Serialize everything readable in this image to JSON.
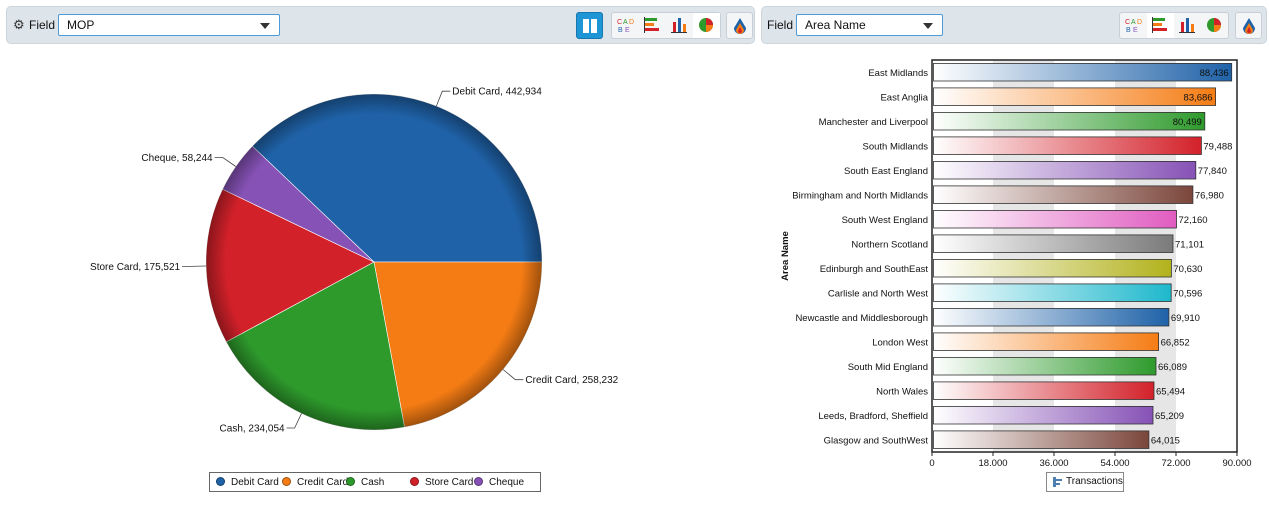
{
  "left_panel": {
    "field_label": "Field",
    "field_value": "MOP",
    "icons": [
      "gear-icon",
      "split-view-icon",
      "word-cloud-icon",
      "bar-chart-icon",
      "column-chart-icon",
      "pie-chart-icon",
      "color-palette-icon"
    ]
  },
  "right_panel": {
    "field_label": "Field",
    "field_value": "Area Name",
    "icons": [
      "word-cloud-icon",
      "bar-chart-icon",
      "column-chart-icon",
      "pie-chart-icon",
      "color-palette-icon"
    ]
  },
  "chart_data": [
    {
      "type": "pie",
      "categories": [
        "Debit Card",
        "Credit Card",
        "Cash",
        "Store Card",
        "Cheque"
      ],
      "values": [
        442934,
        258232,
        234054,
        175521,
        58244
      ],
      "labels": [
        "Debit Card, 442,934",
        "Credit Card, 258,232",
        "Cash, 234,054",
        "Store Card, 175,521",
        "Cheque, 58,244"
      ],
      "colors": [
        "#1f62a8",
        "#f57c14",
        "#2e9a2c",
        "#d3212a",
        "#8652b6"
      ],
      "legend": "bottom"
    },
    {
      "type": "bar",
      "orientation": "horizontal",
      "ylabel": "Area Name",
      "categories": [
        "East Midlands",
        "East Anglia",
        "Manchester and Liverpool",
        "South Midlands",
        "South East England",
        "Birmingham and North Midlands",
        "South West England",
        "Northern Scotland",
        "Edinburgh and SouthEast",
        "Carlisle and North West",
        "Newcastle and Middlesborough",
        "London West",
        "South Mid England",
        "North Wales",
        "Leeds, Bradford, Sheffield",
        "Glasgow and SouthWest"
      ],
      "values": [
        88436,
        83686,
        80499,
        79488,
        77840,
        76980,
        72160,
        71101,
        70630,
        70596,
        69910,
        66852,
        66089,
        65494,
        65209,
        64015
      ],
      "value_labels": [
        "88,436",
        "83,686",
        "80,499",
        "79,488",
        "77,840",
        "76,980",
        "72,160",
        "71,101",
        "70,630",
        "70,596",
        "69,910",
        "66,852",
        "66,089",
        "65,494",
        "65,209",
        "64,015"
      ],
      "colors": [
        "#1f62a8",
        "#f57c14",
        "#2e9a2c",
        "#d3212a",
        "#8652b6",
        "#7b463b",
        "#e05cc0",
        "#7a7a7a",
        "#b2b21c",
        "#1eb8cc",
        "#1f62a8",
        "#f57c14",
        "#2e9a2c",
        "#d3212a",
        "#8652b6",
        "#7b463b"
      ],
      "xlim": [
        0,
        90000
      ],
      "xticks": [
        "0",
        "18,000",
        "36,000",
        "54,000",
        "72,000",
        "90,000"
      ],
      "xtick_values": [
        0,
        18000,
        36000,
        54000,
        72000,
        90000
      ],
      "legend": {
        "label": "Transactions",
        "placement": "bottom"
      }
    }
  ]
}
